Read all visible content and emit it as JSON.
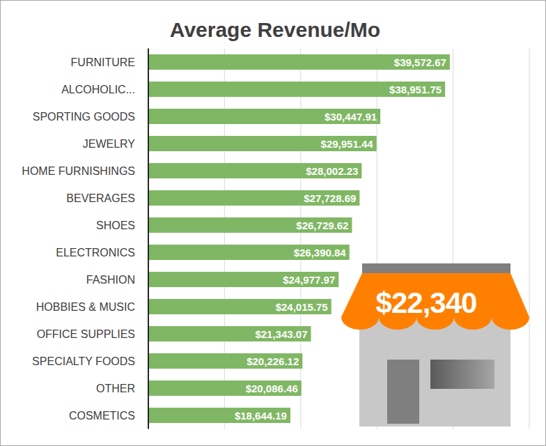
{
  "chart_data": {
    "type": "bar",
    "title": "Average Revenue/Mo",
    "orientation": "horizontal",
    "categories": [
      "FURNITURE",
      "ALCOHOLIC...",
      "SPORTING GOODS",
      "JEWELRY",
      "HOME FURNISHINGS",
      "BEVERAGES",
      "SHOES",
      "ELECTRONICS",
      "FASHION",
      "HOBBIES & MUSIC",
      "OFFICE SUPPLIES",
      "SPECIALTY FOODS",
      "OTHER",
      "COSMETICS"
    ],
    "values": [
      39572.67,
      38951.75,
      30447.91,
      29951.44,
      28002.23,
      27728.69,
      26729.62,
      26390.84,
      24977.97,
      24015.75,
      21343.07,
      20226.12,
      20086.46,
      18644.19
    ],
    "value_labels": [
      "$39,572.67",
      "$38,951.75",
      "$30,447.91",
      "$29,951.44",
      "$28,002.23",
      "$27,728.69",
      "$26,729.62",
      "$26,390.84",
      "$24,977.97",
      "$24,015.75",
      "$21,343.07",
      "$20,226.12",
      "$20,086.46",
      "$18,644.19"
    ],
    "data_labels": true,
    "color": "#80b764",
    "xlim": [
      0,
      50000
    ],
    "xticks": [
      0,
      10000,
      20000,
      30000,
      40000,
      50000
    ],
    "grid": true,
    "tick_labels": false,
    "annotation": "$22,340"
  }
}
